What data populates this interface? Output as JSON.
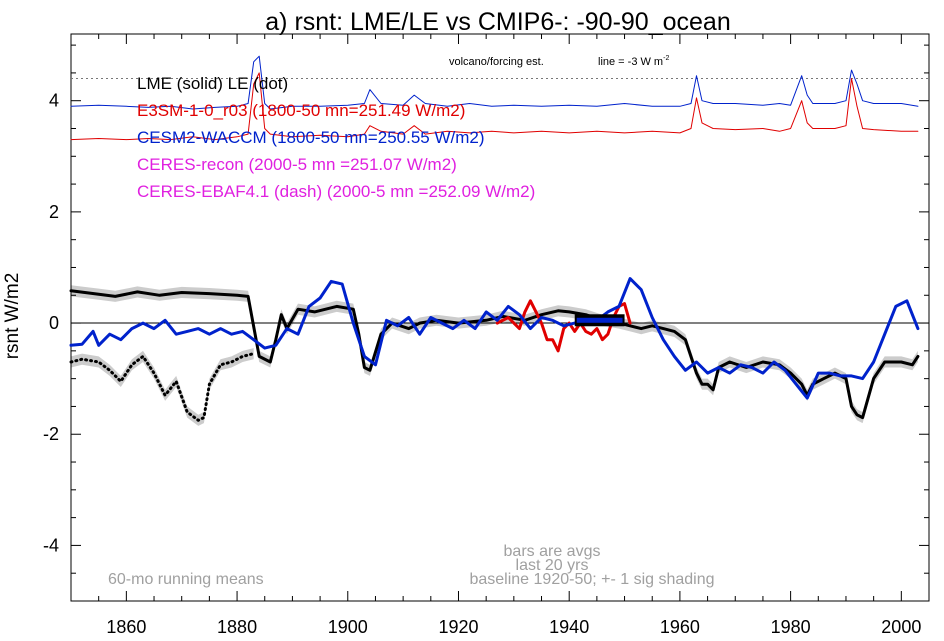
{
  "chart_data": {
    "type": "line",
    "title": "a) rsnt: LME/LE vs CMIP6-: -90-90_ocean",
    "ylabel": "rsnt W/m2",
    "xlabel": "",
    "xlim": [
      1850,
      2005
    ],
    "ylim": [
      -5,
      5.2
    ],
    "x_ticks": [
      1860,
      1880,
      1900,
      1920,
      1940,
      1960,
      1980,
      2000
    ],
    "x_tick_labels": [
      "1860",
      "1880",
      "1900",
      "1920",
      "1940",
      "1960",
      "1980",
      "2000"
    ],
    "y_ticks": [
      -4,
      -2,
      0,
      2,
      4
    ],
    "y_tick_labels": [
      "-4",
      "-2",
      "0",
      "2",
      "4"
    ],
    "zero_line": 0,
    "colors": {
      "lme": "#000000",
      "e3sm": "#e00000",
      "cesm": "#0022cc",
      "ceres": "#e020e0",
      "shading": "#cccccc",
      "note": "#a0a0a0",
      "bars": "#0022cc"
    },
    "legend": [
      {
        "text": "LME (solid)   LE (dot)",
        "color": "#000000"
      },
      {
        "text": "E3SM-1-0_r03 (1800-50 mn=251.49 W/m2)",
        "color": "#e00000"
      },
      {
        "text": "CESM2-WACCM (1800-50 mn=250.55 W/m2)",
        "color": "#0022cc"
      },
      {
        "text": "CERES-recon (2000-5 mn =251.07 W/m2)",
        "color": "#e020e0"
      },
      {
        "text": "CERES-EBAF4.1 (dash) (2000-5 mn =252.09 W/m2)",
        "color": "#e020e0"
      }
    ],
    "annotations": {
      "volcano_label": "volcano/forcing est.",
      "volcano_line": "line = -3 W m",
      "volcano_line_sup": "-2",
      "running_means": "60-mo running means",
      "bars_note": "bars are avgs",
      "last_years": "last 20 yrs",
      "baseline": "baseline 1920-50; +- 1 sig shading"
    },
    "reference_line": 4.4,
    "series": [
      {
        "id": "lme",
        "style": "solid",
        "x": [
          1850,
          1855,
          1858,
          1862,
          1866,
          1870,
          1875,
          1880,
          1882,
          1884,
          1886,
          1887,
          1888,
          1889,
          1891,
          1894,
          1898,
          1901,
          1902,
          1903,
          1904,
          1906,
          1908,
          1911,
          1913,
          1916,
          1920,
          1925,
          1928,
          1932,
          1935,
          1938,
          1940,
          1943,
          1946,
          1949,
          1951,
          1953,
          1955,
          1957,
          1959,
          1961,
          1963,
          1964,
          1965,
          1966,
          1967,
          1969,
          1972,
          1975,
          1978,
          1980,
          1982,
          1983,
          1984,
          1986,
          1988,
          1990,
          1991,
          1992,
          1993,
          1995,
          1997,
          2000,
          2002,
          2003
        ],
        "y": [
          0.58,
          0.52,
          0.48,
          0.56,
          0.5,
          0.55,
          0.53,
          0.5,
          0.48,
          -0.6,
          -0.7,
          -0.3,
          0.15,
          -0.1,
          0.25,
          0.2,
          0.3,
          0.25,
          -0.2,
          -0.8,
          -0.85,
          -0.2,
          0.0,
          -0.1,
          0.0,
          0.05,
          0.0,
          0.05,
          0.12,
          0.05,
          0.15,
          0.22,
          0.2,
          0.15,
          0.05,
          0.0,
          -0.05,
          -0.1,
          -0.05,
          -0.1,
          -0.15,
          -0.3,
          -0.9,
          -1.1,
          -1.1,
          -1.2,
          -0.8,
          -0.7,
          -0.8,
          -0.7,
          -0.75,
          -0.9,
          -1.1,
          -1.3,
          -1.1,
          -1.0,
          -0.9,
          -1.0,
          -1.5,
          -1.65,
          -1.7,
          -1.0,
          -0.7,
          -0.7,
          -0.75,
          -0.6
        ]
      },
      {
        "id": "le",
        "style": "dot",
        "x": [
          1850,
          1852,
          1855,
          1857,
          1859,
          1861,
          1863,
          1865,
          1867,
          1869,
          1871,
          1873,
          1874,
          1875,
          1877,
          1879,
          1881,
          1883
        ],
        "y": [
          -0.7,
          -0.65,
          -0.7,
          -0.85,
          -1.05,
          -0.75,
          -0.6,
          -0.9,
          -1.3,
          -1.05,
          -1.6,
          -1.75,
          -1.7,
          -1.1,
          -0.75,
          -0.7,
          -0.6,
          -0.55
        ]
      },
      {
        "id": "cesm_lower",
        "style": "solid",
        "x": [
          1850,
          1852,
          1854,
          1855,
          1857,
          1859,
          1861,
          1863,
          1865,
          1867,
          1869,
          1871,
          1873,
          1875,
          1877,
          1879,
          1881,
          1883,
          1885,
          1887,
          1889,
          1891,
          1893,
          1895,
          1897,
          1899,
          1901,
          1903,
          1905,
          1907,
          1909,
          1911,
          1913,
          1915,
          1917,
          1919,
          1921,
          1923,
          1925,
          1927,
          1929,
          1931,
          1933,
          1935,
          1937,
          1939,
          1941,
          1943,
          1945,
          1947,
          1949,
          1951,
          1953,
          1955,
          1957,
          1959,
          1961,
          1963,
          1965,
          1967,
          1969,
          1971,
          1973,
          1975,
          1977,
          1979,
          1981,
          1983,
          1985,
          1987,
          1989,
          1991,
          1993,
          1995,
          1997,
          1999,
          2001,
          2003
        ],
        "y": [
          -0.4,
          -0.38,
          -0.15,
          -0.4,
          -0.2,
          -0.3,
          -0.1,
          0.0,
          -0.1,
          0.05,
          -0.2,
          -0.15,
          -0.1,
          -0.2,
          -0.1,
          -0.2,
          -0.15,
          -0.3,
          -0.45,
          -0.4,
          -0.1,
          -0.2,
          0.3,
          0.45,
          0.75,
          0.7,
          0.0,
          -0.6,
          -0.75,
          0.05,
          -0.05,
          0.1,
          -0.2,
          0.1,
          0.0,
          -0.1,
          0.05,
          -0.1,
          0.2,
          0.05,
          0.3,
          0.15,
          -0.1,
          0.1,
          0.05,
          -0.05,
          0.0,
          0.0,
          0.05,
          0.2,
          0.3,
          0.8,
          0.6,
          0.1,
          -0.3,
          -0.6,
          -0.85,
          -0.7,
          -0.9,
          -0.8,
          -0.9,
          -0.75,
          -0.8,
          -0.9,
          -0.7,
          -0.85,
          -1.1,
          -1.35,
          -0.9,
          -0.9,
          -0.95,
          -0.95,
          -1.0,
          -0.7,
          -0.2,
          0.3,
          0.4,
          -0.1
        ]
      },
      {
        "id": "e3sm_lower",
        "style": "solid",
        "x": [
          1927,
          1929,
          1931,
          1932,
          1933,
          1934,
          1935,
          1936,
          1937,
          1938,
          1939,
          1940,
          1941,
          1942,
          1943,
          1944,
          1945,
          1946,
          1947,
          1948,
          1949,
          1950,
          1951
        ],
        "y": [
          0.0,
          0.1,
          -0.1,
          0.2,
          0.4,
          0.2,
          0.0,
          -0.3,
          -0.3,
          -0.5,
          -0.1,
          0.0,
          -0.15,
          0.0,
          -0.15,
          -0.2,
          -0.1,
          -0.3,
          -0.2,
          0.1,
          0.3,
          0.35,
          0.0
        ]
      },
      {
        "id": "cesm_upper",
        "style": "solid",
        "x": [
          1850,
          1855,
          1860,
          1864,
          1868,
          1872,
          1876,
          1880,
          1882,
          1883,
          1884,
          1885,
          1886,
          1890,
          1895,
          1900,
          1903,
          1904,
          1906,
          1910,
          1912,
          1914,
          1918,
          1922,
          1926,
          1930,
          1935,
          1940,
          1945,
          1950,
          1955,
          1960,
          1962,
          1963,
          1964,
          1966,
          1970,
          1975,
          1978,
          1980,
          1982,
          1983,
          1984,
          1988,
          1990,
          1991,
          1992,
          1993,
          1995,
          2000,
          2003
        ],
        "y": [
          3.9,
          3.92,
          3.9,
          3.88,
          3.9,
          3.85,
          3.88,
          3.9,
          3.95,
          4.7,
          4.8,
          3.95,
          3.85,
          3.9,
          3.9,
          3.92,
          3.95,
          4.2,
          3.95,
          3.92,
          4.1,
          3.95,
          3.9,
          3.95,
          3.9,
          3.92,
          3.9,
          3.92,
          3.9,
          3.95,
          3.9,
          3.9,
          3.95,
          4.45,
          4.0,
          3.95,
          3.95,
          3.92,
          3.95,
          3.92,
          4.45,
          4.1,
          3.95,
          3.95,
          4.0,
          4.55,
          4.3,
          4.0,
          3.95,
          3.95,
          3.9
        ]
      },
      {
        "id": "e3sm_upper",
        "style": "solid",
        "x": [
          1850,
          1855,
          1860,
          1864,
          1868,
          1872,
          1876,
          1880,
          1882,
          1883,
          1884,
          1885,
          1886,
          1890,
          1895,
          1900,
          1903,
          1904,
          1906,
          1910,
          1912,
          1914,
          1918,
          1922,
          1926,
          1930,
          1935,
          1940,
          1945,
          1950,
          1955,
          1960,
          1962,
          1963,
          1964,
          1966,
          1970,
          1975,
          1978,
          1980,
          1982,
          1983,
          1984,
          1988,
          1990,
          1991,
          1992,
          1993,
          1995,
          2000,
          2003
        ],
        "y": [
          3.3,
          3.32,
          3.3,
          3.32,
          3.3,
          3.35,
          3.3,
          3.35,
          3.4,
          4.3,
          4.5,
          3.5,
          3.4,
          3.35,
          3.38,
          3.35,
          3.4,
          3.55,
          3.45,
          3.4,
          3.55,
          3.4,
          3.45,
          3.42,
          3.45,
          3.42,
          3.45,
          3.42,
          3.45,
          3.42,
          3.45,
          3.42,
          3.5,
          4.05,
          3.6,
          3.5,
          3.48,
          3.5,
          3.45,
          3.5,
          4.0,
          3.6,
          3.5,
          3.5,
          3.55,
          4.4,
          3.9,
          3.5,
          3.48,
          3.45,
          3.45
        ]
      }
    ],
    "bars": [
      {
        "x0": 1941,
        "x1": 1950,
        "y": 0.05
      }
    ]
  }
}
